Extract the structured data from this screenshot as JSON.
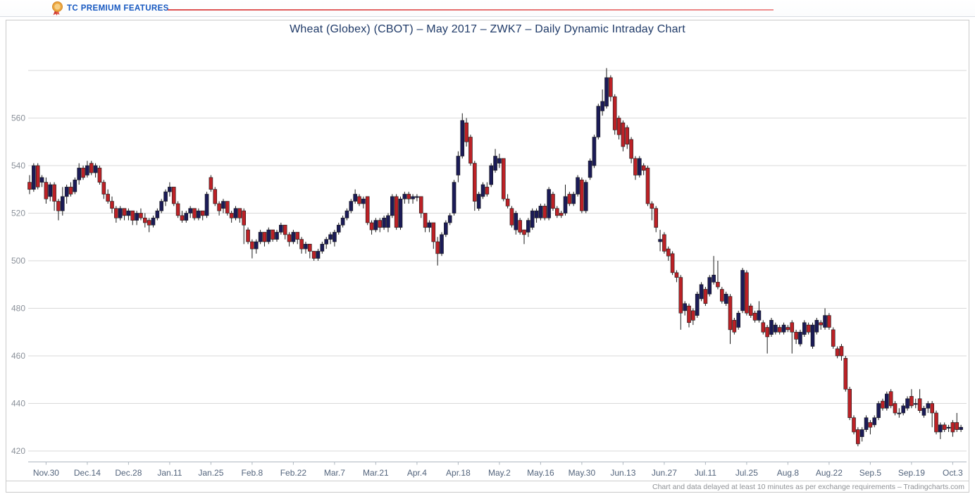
{
  "header": {
    "brand": "TC PREMIUM FEATURES",
    "medal_icon": "award-medal"
  },
  "chart": {
    "title": "Wheat (Globex) (CBOT) – May 2017 – ZWK7 – Daily Dynamic Intraday Chart",
    "footer": "Chart and data delayed at least 10 minutes as per exchange requirements – Tradingcharts.com"
  },
  "chart_data": {
    "type": "candlestick",
    "title": "Wheat (Globex) (CBOT) – May 2017 – ZWK7 – Daily Dynamic Intraday Chart",
    "x_labels": [
      "Nov.30",
      "Dec.14",
      "Dec.28",
      "Jan.11",
      "Jan.25",
      "Feb.8",
      "Feb.22",
      "Mar.7",
      "Mar.21",
      "Apr.4",
      "Apr.18",
      "May.2",
      "May.16",
      "May.30",
      "Jun.13",
      "Jun.27",
      "Jul.11",
      "Jul.25",
      "Aug.8",
      "Aug.22",
      "Sep.5",
      "Sep.19",
      "Oct.3"
    ],
    "x_label_first_candle_index": 4,
    "x_label_every": 10,
    "y_grid": [
      580,
      560,
      540,
      520,
      500,
      480,
      460,
      440,
      420
    ],
    "y_tick_labels": [
      560,
      540,
      520,
      500,
      480,
      460,
      440,
      420
    ],
    "ylim": [
      415,
      585
    ],
    "grid": true,
    "legend": "none",
    "colors": {
      "up": "#1b1b57",
      "down": "#bc2126",
      "body_stroke": "#19191c",
      "wick": "#1a1a1a",
      "gridline": "#d9d9d9",
      "axis": "#aeb6bf",
      "y_label": "#8a9099",
      "x_label": "#53647c",
      "title": "#1f3a68",
      "brand": "#1557c0"
    },
    "candles_format": [
      "open",
      "high",
      "low",
      "close"
    ],
    "candles": [
      [
        533,
        536,
        528,
        530
      ],
      [
        530,
        541,
        529,
        540
      ],
      [
        540,
        541,
        530,
        531
      ],
      [
        533,
        536,
        531,
        535
      ],
      [
        533,
        535,
        524,
        526
      ],
      [
        527,
        533,
        525,
        532
      ],
      [
        532,
        533,
        521,
        525
      ],
      [
        525,
        526,
        517,
        521
      ],
      [
        521,
        531,
        519,
        527
      ],
      [
        527,
        532,
        524,
        531
      ],
      [
        531,
        533,
        527,
        528
      ],
      [
        529,
        535,
        528,
        534
      ],
      [
        534,
        541,
        532,
        539
      ],
      [
        539,
        540,
        534,
        535
      ],
      [
        536,
        542,
        535,
        540
      ],
      [
        541,
        542,
        536,
        537
      ],
      [
        537,
        541,
        535,
        540
      ],
      [
        539,
        540,
        532,
        533
      ],
      [
        533,
        534,
        526,
        528
      ],
      [
        528,
        530,
        524,
        525
      ],
      [
        525,
        527,
        520,
        522
      ],
      [
        522,
        523,
        516,
        518
      ],
      [
        518,
        523,
        517,
        522
      ],
      [
        522,
        522,
        517,
        519
      ],
      [
        519,
        522,
        517,
        521
      ],
      [
        521,
        521,
        515,
        517
      ],
      [
        517,
        521,
        515,
        520
      ],
      [
        520,
        522,
        517,
        518
      ],
      [
        518,
        520,
        514,
        516
      ],
      [
        517,
        518,
        512,
        515
      ],
      [
        515,
        519,
        514,
        518
      ],
      [
        518,
        522,
        517,
        521
      ],
      [
        521,
        526,
        520,
        525
      ],
      [
        525,
        530,
        523,
        529
      ],
      [
        529,
        533,
        527,
        531
      ],
      [
        531,
        531,
        523,
        524
      ],
      [
        524,
        525,
        518,
        519
      ],
      [
        519,
        521,
        516,
        517
      ],
      [
        517,
        521,
        516,
        520
      ],
      [
        520,
        523,
        518,
        522
      ],
      [
        522,
        522,
        517,
        518
      ],
      [
        518,
        522,
        517,
        521
      ],
      [
        521,
        521,
        517,
        519
      ],
      [
        519,
        529,
        518,
        528
      ],
      [
        535,
        536,
        529,
        530
      ],
      [
        530,
        531,
        523,
        524
      ],
      [
        524,
        525,
        519,
        521
      ],
      [
        522,
        526,
        520,
        525
      ],
      [
        525,
        525,
        519,
        520
      ],
      [
        520,
        521,
        516,
        518
      ],
      [
        518,
        523,
        517,
        522
      ],
      [
        522,
        522,
        516,
        518
      ],
      [
        521,
        522,
        507,
        515
      ],
      [
        513,
        514,
        507,
        508
      ],
      [
        508,
        509,
        501,
        505
      ],
      [
        505,
        509,
        503,
        508
      ],
      [
        508,
        513,
        507,
        512
      ],
      [
        512,
        512,
        506,
        508
      ],
      [
        508,
        514,
        507,
        513
      ],
      [
        513,
        513,
        508,
        509
      ],
      [
        509,
        513,
        508,
        512
      ],
      [
        512,
        516,
        511,
        515
      ],
      [
        515,
        515,
        509,
        511
      ],
      [
        511,
        512,
        506,
        508
      ],
      [
        508,
        513,
        507,
        512
      ],
      [
        512,
        512,
        507,
        509
      ],
      [
        509,
        510,
        503,
        505
      ],
      [
        505,
        508,
        503,
        507
      ],
      [
        507,
        507,
        501,
        504
      ],
      [
        504,
        504,
        500,
        501
      ],
      [
        501,
        505,
        500,
        504
      ],
      [
        504,
        508,
        503,
        507
      ],
      [
        507,
        510,
        505,
        509
      ],
      [
        509,
        512,
        507,
        511
      ],
      [
        508,
        513,
        506,
        512
      ],
      [
        512,
        516,
        511,
        515
      ],
      [
        515,
        519,
        514,
        518
      ],
      [
        518,
        522,
        517,
        521
      ],
      [
        521,
        526,
        520,
        525
      ],
      [
        525,
        530,
        524,
        528
      ],
      [
        527,
        528,
        523,
        524
      ],
      [
        524,
        527,
        522,
        526
      ],
      [
        527,
        527,
        515,
        516
      ],
      [
        516,
        517,
        511,
        513
      ],
      [
        513,
        518,
        512,
        517
      ],
      [
        517,
        518,
        512,
        514
      ],
      [
        514,
        519,
        513,
        518
      ],
      [
        514,
        520,
        512,
        519
      ],
      [
        519,
        528,
        518,
        527
      ],
      [
        527,
        528,
        513,
        514
      ],
      [
        514,
        527,
        513,
        526
      ],
      [
        526,
        529,
        524,
        528
      ],
      [
        528,
        529,
        524,
        526
      ],
      [
        526,
        528,
        524,
        527
      ],
      [
        527,
        528,
        525,
        527
      ],
      [
        527,
        527,
        518,
        520
      ],
      [
        520,
        520,
        512,
        514
      ],
      [
        514,
        517,
        512,
        516
      ],
      [
        516,
        516,
        505,
        508
      ],
      [
        508,
        510,
        498,
        503
      ],
      [
        503,
        512,
        502,
        511
      ],
      [
        511,
        517,
        510,
        516
      ],
      [
        516,
        520,
        515,
        519
      ],
      [
        520,
        534,
        519,
        533
      ],
      [
        536,
        546,
        533,
        544
      ],
      [
        544,
        562,
        543,
        559
      ],
      [
        558,
        560,
        548,
        550
      ],
      [
        552,
        553,
        540,
        541
      ],
      [
        541,
        542,
        521,
        525
      ],
      [
        522,
        529,
        521,
        528
      ],
      [
        527,
        533,
        526,
        532
      ],
      [
        531,
        533,
        527,
        528
      ],
      [
        532,
        541,
        531,
        540
      ],
      [
        538,
        547,
        537,
        544
      ],
      [
        541,
        545,
        539,
        543
      ],
      [
        543,
        543,
        525,
        526
      ],
      [
        526,
        528,
        522,
        523
      ],
      [
        522,
        523,
        514,
        515
      ],
      [
        513,
        521,
        511,
        520
      ],
      [
        517,
        518,
        511,
        512
      ],
      [
        513,
        513,
        507,
        511
      ],
      [
        512,
        518,
        510,
        517
      ],
      [
        514,
        522,
        513,
        521
      ],
      [
        518,
        522,
        516,
        521
      ],
      [
        518,
        524,
        517,
        523
      ],
      [
        523,
        524,
        517,
        518
      ],
      [
        518,
        531,
        517,
        530
      ],
      [
        528,
        529,
        521,
        522
      ],
      [
        522,
        523,
        518,
        519
      ],
      [
        520,
        521,
        518,
        519
      ],
      [
        520,
        532,
        519,
        527
      ],
      [
        528,
        529,
        523,
        524
      ],
      [
        524,
        529,
        523,
        528
      ],
      [
        528,
        536,
        527,
        535
      ],
      [
        534,
        535,
        520,
        521
      ],
      [
        521,
        534,
        520,
        533
      ],
      [
        535,
        543,
        534,
        542
      ],
      [
        540,
        553,
        539,
        552
      ],
      [
        552,
        566,
        551,
        565
      ],
      [
        563,
        572,
        561,
        567
      ],
      [
        565,
        581,
        564,
        577
      ],
      [
        577,
        578,
        567,
        569
      ],
      [
        569,
        570,
        553,
        555
      ],
      [
        560,
        561,
        551,
        553
      ],
      [
        558,
        559,
        546,
        548
      ],
      [
        556,
        557,
        547,
        549
      ],
      [
        551,
        552,
        541,
        543
      ],
      [
        543,
        544,
        534,
        536
      ],
      [
        536,
        544,
        535,
        543
      ],
      [
        540,
        541,
        536,
        538
      ],
      [
        539,
        540,
        523,
        524
      ],
      [
        524,
        525,
        517,
        522
      ],
      [
        522,
        523,
        512,
        514
      ],
      [
        508,
        513,
        504,
        509
      ],
      [
        511,
        512,
        503,
        504
      ],
      [
        505,
        506,
        500,
        502
      ],
      [
        503,
        504,
        494,
        495
      ],
      [
        495,
        496,
        491,
        493
      ],
      [
        493,
        494,
        471,
        478
      ],
      [
        479,
        483,
        477,
        482
      ],
      [
        481,
        482,
        472,
        474
      ],
      [
        479,
        480,
        473,
        475
      ],
      [
        477,
        487,
        476,
        486
      ],
      [
        484,
        491,
        483,
        490
      ],
      [
        488,
        489,
        481,
        482
      ],
      [
        486,
        494,
        485,
        493
      ],
      [
        491,
        502,
        490,
        494
      ],
      [
        491,
        500,
        488,
        489
      ],
      [
        488,
        489,
        482,
        483
      ],
      [
        482,
        487,
        481,
        486
      ],
      [
        485,
        486,
        465,
        471
      ],
      [
        475,
        476,
        469,
        470
      ],
      [
        472,
        479,
        471,
        478
      ],
      [
        479,
        497,
        478,
        496
      ],
      [
        495,
        496,
        477,
        478
      ],
      [
        481,
        482,
        476,
        477
      ],
      [
        478,
        479,
        474,
        475
      ],
      [
        475,
        483,
        474,
        479
      ],
      [
        474,
        475,
        469,
        470
      ],
      [
        472,
        473,
        461,
        468
      ],
      [
        469,
        476,
        468,
        475
      ],
      [
        470,
        474,
        469,
        473
      ],
      [
        472,
        473,
        469,
        470
      ],
      [
        470,
        474,
        469,
        473
      ],
      [
        472,
        473,
        470,
        471
      ],
      [
        474,
        475,
        461,
        470
      ],
      [
        470,
        471,
        465,
        467
      ],
      [
        465,
        471,
        464,
        470
      ],
      [
        469,
        475,
        468,
        474
      ],
      [
        473,
        474,
        469,
        470
      ],
      [
        464,
        474,
        463,
        473
      ],
      [
        470,
        476,
        469,
        475
      ],
      [
        474,
        475,
        471,
        473
      ],
      [
        472,
        480,
        471,
        477
      ],
      [
        477,
        478,
        471,
        472
      ],
      [
        471,
        472,
        463,
        464
      ],
      [
        463,
        464,
        459,
        460
      ],
      [
        464,
        465,
        458,
        460
      ],
      [
        459,
        460,
        445,
        446
      ],
      [
        446,
        447,
        433,
        434
      ],
      [
        434,
        435,
        427,
        428
      ],
      [
        429,
        430,
        422,
        423
      ],
      [
        426,
        430,
        424,
        429
      ],
      [
        429,
        435,
        428,
        434
      ],
      [
        432,
        433,
        427,
        430
      ],
      [
        431,
        435,
        430,
        434
      ],
      [
        434,
        441,
        433,
        440
      ],
      [
        441,
        442,
        437,
        438
      ],
      [
        438,
        445,
        437,
        444
      ],
      [
        445,
        446,
        438,
        439
      ],
      [
        440,
        441,
        435,
        436
      ],
      [
        436,
        438,
        434,
        436
      ],
      [
        436,
        440,
        435,
        439
      ],
      [
        438,
        443,
        437,
        442
      ],
      [
        443,
        446,
        438,
        439
      ],
      [
        440,
        442,
        438,
        440
      ],
      [
        442,
        446,
        436,
        437
      ],
      [
        435,
        439,
        434,
        438
      ],
      [
        438,
        441,
        436,
        440
      ],
      [
        440,
        441,
        430,
        436
      ],
      [
        436,
        437,
        427,
        428
      ],
      [
        428,
        432,
        425,
        431
      ],
      [
        431,
        432,
        428,
        429
      ],
      [
        430,
        431,
        428,
        430
      ],
      [
        432,
        433,
        426,
        428
      ],
      [
        432,
        436,
        428,
        429
      ],
      [
        429,
        431,
        428,
        430
      ]
    ]
  }
}
